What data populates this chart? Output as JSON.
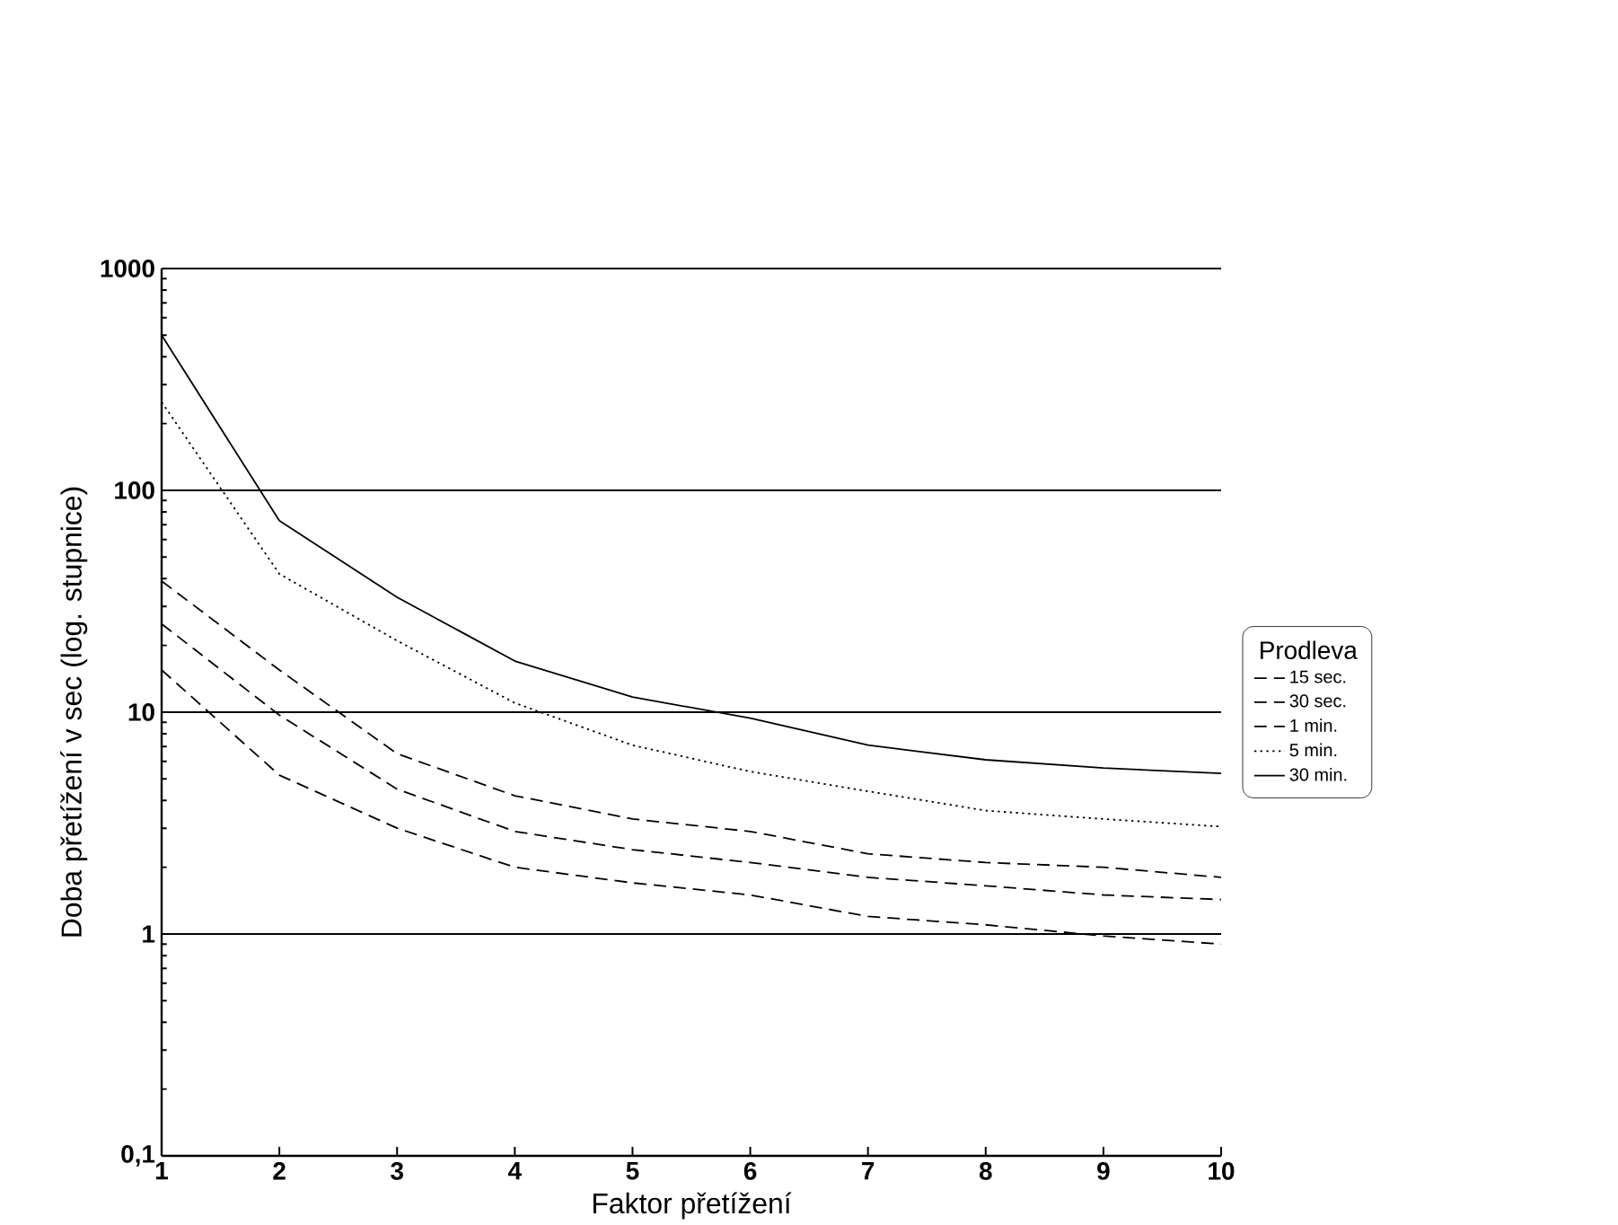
{
  "chart_data": {
    "type": "line",
    "xlabel": "Faktor přetížení",
    "ylabel": "Doba přetížení v sec (log. stupnice)",
    "legend_title": "Prodleva",
    "x": [
      1,
      2,
      3,
      4,
      5,
      6,
      7,
      8,
      9,
      10
    ],
    "series": [
      {
        "name": "15 sec.",
        "color": "#000000",
        "line_style": "dashed",
        "values": [
          15.5,
          5.2,
          3.0,
          2.0,
          1.7,
          1.5,
          1.2,
          1.1,
          0.98,
          0.9
        ]
      },
      {
        "name": "30 sec.",
        "color": "#000000",
        "line_style": "dashed",
        "values": [
          25,
          9.7,
          4.5,
          2.9,
          2.4,
          2.1,
          1.8,
          1.65,
          1.5,
          1.43
        ]
      },
      {
        "name": "1 min.",
        "color": "#000000",
        "line_style": "dashed",
        "values": [
          39,
          15.5,
          6.5,
          4.2,
          3.3,
          2.9,
          2.3,
          2.1,
          2.0,
          1.8
        ]
      },
      {
        "name": "5 min.",
        "color": "#000000",
        "line_style": "dotted",
        "values": [
          250,
          42,
          21,
          11,
          7.1,
          5.4,
          4.4,
          3.6,
          3.3,
          3.05
        ]
      },
      {
        "name": "30 min.",
        "color": "#000000",
        "line_style": "solid",
        "values": [
          500,
          73,
          33,
          17,
          11.7,
          9.4,
          7.1,
          6.1,
          5.6,
          5.3
        ]
      }
    ],
    "xlim": [
      1,
      10
    ],
    "xticks": [
      1,
      2,
      3,
      4,
      5,
      6,
      7,
      8,
      9,
      10
    ],
    "ylim": [
      0.1,
      1000
    ],
    "yticks": [
      {
        "value": 0.1,
        "label": "0,1"
      },
      1,
      10,
      100,
      1000
    ],
    "log": "y",
    "grid": "y",
    "legend": "right",
    "marker": "none"
  }
}
